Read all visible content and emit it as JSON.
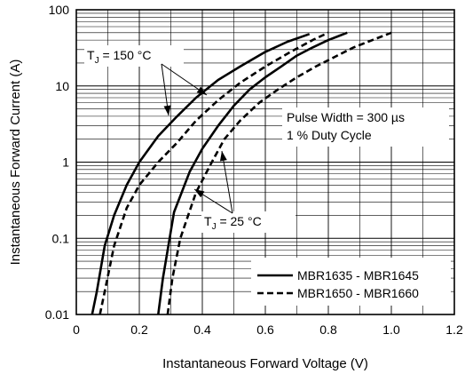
{
  "chart_data": {
    "type": "line",
    "x_scale": "linear",
    "y_scale": "log",
    "xlim": [
      0,
      1.2
    ],
    "ylim": [
      0.01,
      100
    ],
    "grid": true,
    "xlabel": "Instantaneous Forward Voltage (V)",
    "ylabel": "Instantaneous Forward Current (A)",
    "x_ticks": [
      "0",
      "0.2",
      "0.4",
      "0.6",
      "0.8",
      "1.0",
      "1.2"
    ],
    "y_ticks": [
      "0.01",
      "0.1",
      "1",
      "10",
      "100"
    ],
    "legend_position": "bottom-right",
    "annotations": {
      "tj150_prefix": "T",
      "tj150_sub": "J",
      "tj150_suffix": " = 150 °C",
      "tj25_prefix": "T",
      "tj25_sub": "J",
      "tj25_suffix": " = 25 °C",
      "pulse_line1": "Pulse Width = 300 µs",
      "pulse_line2": "1 % Duty Cycle"
    },
    "series": [
      {
        "name": "MBR1635 - MBR1645",
        "style": "solid",
        "condition": "TJ = 150 °C",
        "x": [
          0.05,
          0.065,
          0.09,
          0.12,
          0.16,
          0.2,
          0.26,
          0.32,
          0.38,
          0.45,
          0.52,
          0.6,
          0.67,
          0.74
        ],
        "y": [
          0.01,
          0.02,
          0.08,
          0.2,
          0.5,
          1.0,
          2.2,
          4.0,
          7.0,
          12.0,
          18.0,
          28.0,
          38.0,
          48.0
        ]
      },
      {
        "name": "MBR1650 - MBR1660",
        "style": "dashed",
        "condition": "TJ = 150 °C",
        "x": [
          0.075,
          0.09,
          0.12,
          0.16,
          0.2,
          0.26,
          0.32,
          0.38,
          0.45,
          0.52,
          0.6,
          0.68,
          0.75,
          0.8
        ],
        "y": [
          0.01,
          0.02,
          0.08,
          0.25,
          0.5,
          1.0,
          1.8,
          3.5,
          6.5,
          11.0,
          18.0,
          28.0,
          40.0,
          50.0
        ]
      },
      {
        "name": "MBR1635 - MBR1645",
        "style": "solid",
        "condition": "TJ = 25 °C",
        "x": [
          0.26,
          0.275,
          0.31,
          0.36,
          0.4,
          0.45,
          0.5,
          0.55,
          0.6,
          0.65,
          0.7,
          0.75,
          0.8,
          0.86
        ],
        "y": [
          0.01,
          0.03,
          0.22,
          0.75,
          1.5,
          3.0,
          5.5,
          9.0,
          13.0,
          18.0,
          25.0,
          32.0,
          40.0,
          50.0
        ]
      },
      {
        "name": "MBR1650 - MBR1660",
        "style": "dashed",
        "condition": "TJ = 25 °C",
        "x": [
          0.29,
          0.305,
          0.33,
          0.38,
          0.43,
          0.47,
          0.52,
          0.58,
          0.64,
          0.7,
          0.76,
          0.82,
          0.88,
          0.94,
          1.0
        ],
        "y": [
          0.01,
          0.03,
          0.1,
          0.4,
          1.0,
          2.0,
          3.5,
          6.0,
          9.0,
          13.0,
          18.0,
          24.0,
          32.0,
          40.0,
          50.0
        ]
      }
    ]
  }
}
